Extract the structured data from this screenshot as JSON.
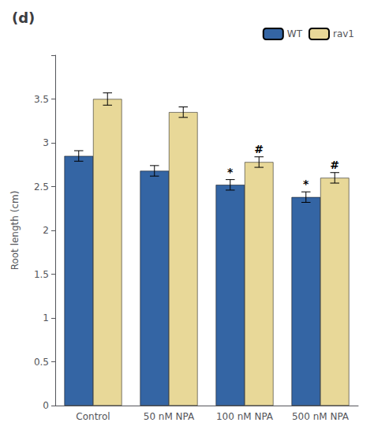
{
  "chart_data": {
    "type": "bar",
    "title": "(d)",
    "categories": [
      "Control",
      "50 nM NPA",
      "100 nM NPA",
      "500 nM NPA"
    ],
    "series": [
      {
        "name": "WT",
        "color": "#3465a4",
        "values": [
          2.85,
          2.68,
          2.52,
          2.38
        ],
        "errors": [
          0.06,
          0.06,
          0.06,
          0.06
        ],
        "annotations": [
          null,
          null,
          "*",
          "*"
        ]
      },
      {
        "name": "rav1",
        "color": "#e8d898",
        "values": [
          3.5,
          3.35,
          2.78,
          2.6
        ],
        "errors": [
          0.07,
          0.06,
          0.06,
          0.06
        ],
        "annotations": [
          null,
          null,
          "#",
          "#"
        ]
      }
    ],
    "ylabel": "Root length (cm)",
    "ylim": [
      0,
      4.0
    ],
    "yticks": [
      0,
      0.5,
      1,
      1.5,
      2,
      2.5,
      3,
      3.5,
      {
        "value": 4,
        "label": ""
      }
    ],
    "legend": "upper right",
    "grid": false
  }
}
